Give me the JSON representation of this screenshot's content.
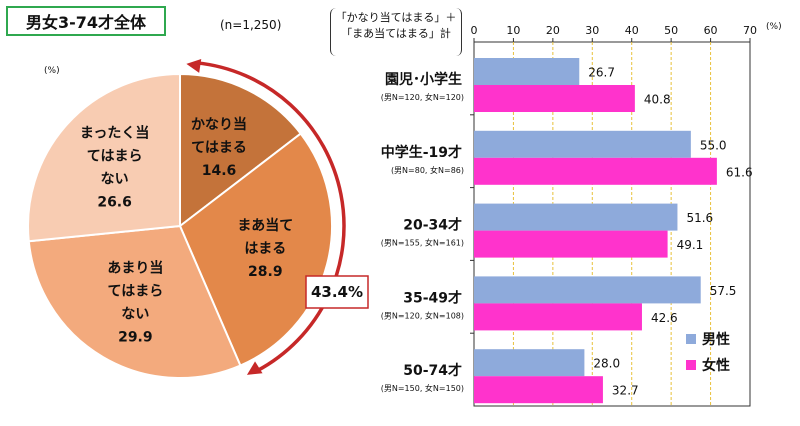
{
  "header": {
    "title": "男女3-74才全体",
    "sample_size": "(n=1,250)",
    "pie_unit": "(%)",
    "bar_unit": "(%)",
    "bar_header_line1": "「かなり当てはまる」＋",
    "bar_header_line2": "「まあ当てはまる」計"
  },
  "chart_data": [
    {
      "type": "pie",
      "slices": [
        {
          "label_lines": [
            "かなり当",
            "てはまる"
          ],
          "value": 14.6,
          "value_label": "14.6",
          "color": "#c4733a"
        },
        {
          "label_lines": [
            "まあ当て",
            "はまる"
          ],
          "value": 28.9,
          "value_label": "28.9",
          "color": "#e3884a"
        },
        {
          "label_lines": [
            "あまり当",
            "てはまら",
            "ない"
          ],
          "value": 29.9,
          "value_label": "29.9",
          "color": "#f3aa7d"
        },
        {
          "label_lines": [
            "まったく当",
            "てはまら",
            "ない"
          ],
          "value": 26.6,
          "value_label": "26.6",
          "color": "#f8ccb2"
        }
      ],
      "combined_label": "43.4%",
      "combined_value": 43.4
    },
    {
      "type": "bar",
      "orientation": "horizontal",
      "xlim": [
        0,
        70
      ],
      "ticks": [
        "0",
        "10",
        "20",
        "30",
        "40",
        "50",
        "60",
        "70"
      ],
      "grid": true,
      "legend_position": "bottom-right",
      "categories": [
        {
          "label": "園児･小学生",
          "sub": "(男N=120, 女N=120)"
        },
        {
          "label": "中学生-19才",
          "sub": "(男N=80, 女N=86)"
        },
        {
          "label": "20-34才",
          "sub": "(男N=155, 女N=161)"
        },
        {
          "label": "35-49才",
          "sub": "(男N=120, 女N=108)"
        },
        {
          "label": "50-74才",
          "sub": "(男N=150, 女N=150)"
        }
      ],
      "series": [
        {
          "name": "男性",
          "color": "#8eaadb",
          "values": [
            26.7,
            55.0,
            51.6,
            57.5,
            28.0
          ],
          "value_labels": [
            "26.7",
            "55.0",
            "51.6",
            "57.5",
            "28.0"
          ]
        },
        {
          "name": "女性",
          "color": "#ff33cc",
          "values": [
            40.8,
            61.6,
            49.1,
            42.6,
            32.7
          ],
          "value_labels": [
            "40.8",
            "61.6",
            "49.1",
            "42.6",
            "32.7"
          ]
        }
      ]
    }
  ]
}
